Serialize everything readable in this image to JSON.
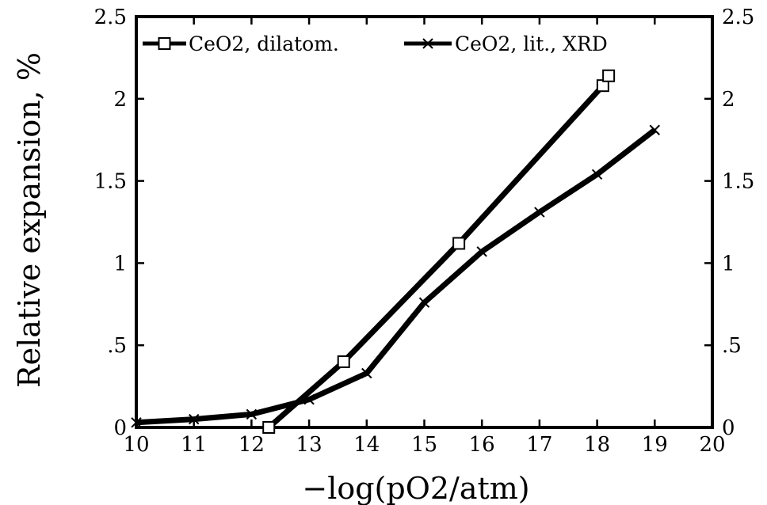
{
  "chart_data": {
    "type": "line",
    "xlabel": "−log(pO2/atm)",
    "ylabel": "Relative expansion, %",
    "xlim": [
      10,
      20
    ],
    "ylim": [
      0,
      2.5
    ],
    "xticks": [
      10,
      11,
      12,
      13,
      14,
      15,
      16,
      17,
      18,
      19,
      20
    ],
    "xtick_labels": [
      "10",
      "11",
      "12",
      "13",
      "14",
      "15",
      "16",
      "17",
      "18",
      "19",
      "20"
    ],
    "yticks": [
      0,
      0.5,
      1,
      1.5,
      2,
      2.5
    ],
    "ytick_labels": [
      "0",
      ".5",
      "1",
      "1.5",
      "2",
      "2.5"
    ],
    "right_axis_tick_labels": [
      "0",
      ".5",
      "1",
      "1.5",
      "2",
      "2.5"
    ],
    "grid": false,
    "legend_position": "top",
    "series": [
      {
        "name": "CeO2, dilatom.",
        "marker": "square",
        "x": [
          12.3,
          13.6,
          15.6,
          18.1,
          18.2
        ],
        "y": [
          0.0,
          0.4,
          1.12,
          2.08,
          2.14
        ]
      },
      {
        "name": "CeO2, lit., XRD",
        "marker": "x",
        "x": [
          10,
          11,
          12,
          13,
          14,
          15,
          16,
          17,
          18,
          19
        ],
        "y": [
          0.03,
          0.05,
          0.08,
          0.17,
          0.33,
          0.76,
          1.07,
          1.31,
          1.54,
          1.81
        ]
      }
    ]
  }
}
